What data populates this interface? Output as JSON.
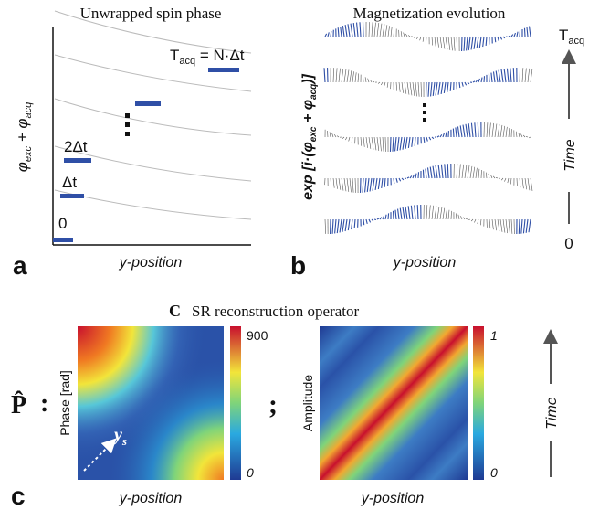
{
  "panel_a": {
    "letter": "a",
    "title": "Unwrapped spin phase",
    "y_label": [
      "φ",
      "exc",
      " + φ",
      "acq"
    ],
    "x_label": "y-position",
    "step_labels": [
      "0",
      "Δt",
      "2Δt"
    ],
    "final_label": [
      "T",
      "acq",
      " = N·Δt"
    ]
  },
  "panel_b": {
    "letter": "b",
    "title": "Magnetization evolution",
    "y_label": [
      "exp [i·(φ",
      "exc",
      " + φ",
      "acq",
      ")]"
    ],
    "x_label": "y-position",
    "time_top": [
      "T",
      "acq"
    ],
    "time_label": "Time",
    "time_bottom": "0"
  },
  "panel_c": {
    "letter": "c",
    "heading_letter": "C",
    "heading": "SR reconstruction operator",
    "operator": "P̂",
    "colon": ":",
    "semicolon": ";",
    "left_map": {
      "y_label": "Phase [rad]",
      "x_label": "y-position",
      "annotation": [
        "y",
        "s"
      ],
      "colorbar_max": "900",
      "colorbar_min": "0"
    },
    "right_map": {
      "y_label": "Amplitude",
      "x_label": "y-position",
      "colorbar_max": "1",
      "colorbar_min": "0"
    },
    "time_label": "Time"
  }
}
